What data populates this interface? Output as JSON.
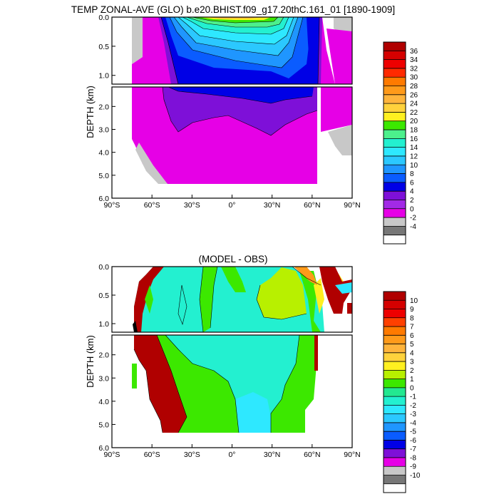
{
  "chart_data": [
    {
      "type": "heatmap",
      "title": "TEMP ZONAL-AVE (GLO) b.e20.BHIST.f09_g17.20thC.161_01 [1890-1909]",
      "ylabel": "DEPTH (km)",
      "x_ticks": [
        "90°S",
        "60°S",
        "30°S",
        "0°",
        "30°N",
        "60°N",
        "90°N"
      ],
      "x_values": [
        -90,
        -60,
        -30,
        0,
        30,
        60,
        90
      ],
      "upper_y_ticks": [
        "0.0",
        "0.5",
        "1.0"
      ],
      "upper_y_values": [
        0.0,
        0.5,
        1.0
      ],
      "lower_y_ticks": [
        "2.0",
        "3.0",
        "4.0",
        "5.0",
        "6.0"
      ],
      "lower_y_values": [
        2.0,
        3.0,
        4.0,
        5.0,
        6.0
      ],
      "colorbar_labels": [
        "36",
        "34",
        "32",
        "30",
        "28",
        "26",
        "24",
        "22",
        "20",
        "18",
        "16",
        "14",
        "12",
        "10",
        "8",
        "6",
        "4",
        "2",
        "0",
        "-2",
        "-4"
      ],
      "colorbar_colors": [
        "#b00000",
        "#d50000",
        "#ee0000",
        "#ff2a00",
        "#ff7a00",
        "#ff9a1a",
        "#ffb43c",
        "#ffd23c",
        "#fff020",
        "#3ce800",
        "#4cf08c",
        "#23f0d0",
        "#2ee8ff",
        "#2bc8ff",
        "#1f96ff",
        "#0a5cff",
        "#0000e6",
        "#7e10d8",
        "#a22ae6",
        "#e600e6",
        "#c8c8c8",
        "#777777",
        "#ffffff"
      ]
    },
    {
      "type": "heatmap",
      "title": "(MODEL - OBS)",
      "ylabel": "DEPTH (km)",
      "x_ticks": [
        "90°S",
        "60°S",
        "30°S",
        "0°",
        "30°N",
        "60°N",
        "90°N"
      ],
      "x_values": [
        -90,
        -60,
        -30,
        0,
        30,
        60,
        90
      ],
      "upper_y_ticks": [
        "0.0",
        "0.5",
        "1.0"
      ],
      "upper_y_values": [
        0.0,
        0.5,
        1.0
      ],
      "lower_y_ticks": [
        "2.0",
        "3.0",
        "4.0",
        "5.0",
        "6.0"
      ],
      "lower_y_values": [
        2.0,
        3.0,
        4.0,
        5.0,
        6.0
      ],
      "colorbar_labels": [
        "10",
        "9",
        "8",
        "7",
        "6",
        "5",
        "4",
        "3",
        "2",
        "1",
        "0",
        "-1",
        "-2",
        "-3",
        "-4",
        "-5",
        "-6",
        "-7",
        "-8",
        "-9",
        "-10"
      ],
      "colorbar_colors": [
        "#b00000",
        "#d50000",
        "#ee0000",
        "#ff4000",
        "#ff7a00",
        "#ff9a1a",
        "#ffb43c",
        "#ffd23c",
        "#fff020",
        "#b8f000",
        "#3ce800",
        "#23e890",
        "#23f0d0",
        "#2ee8ff",
        "#2bc8ff",
        "#1f96ff",
        "#0a5cff",
        "#0000e6",
        "#7e10d8",
        "#e600e6",
        "#c8c8c8",
        "#777777",
        "#ffffff"
      ]
    }
  ]
}
